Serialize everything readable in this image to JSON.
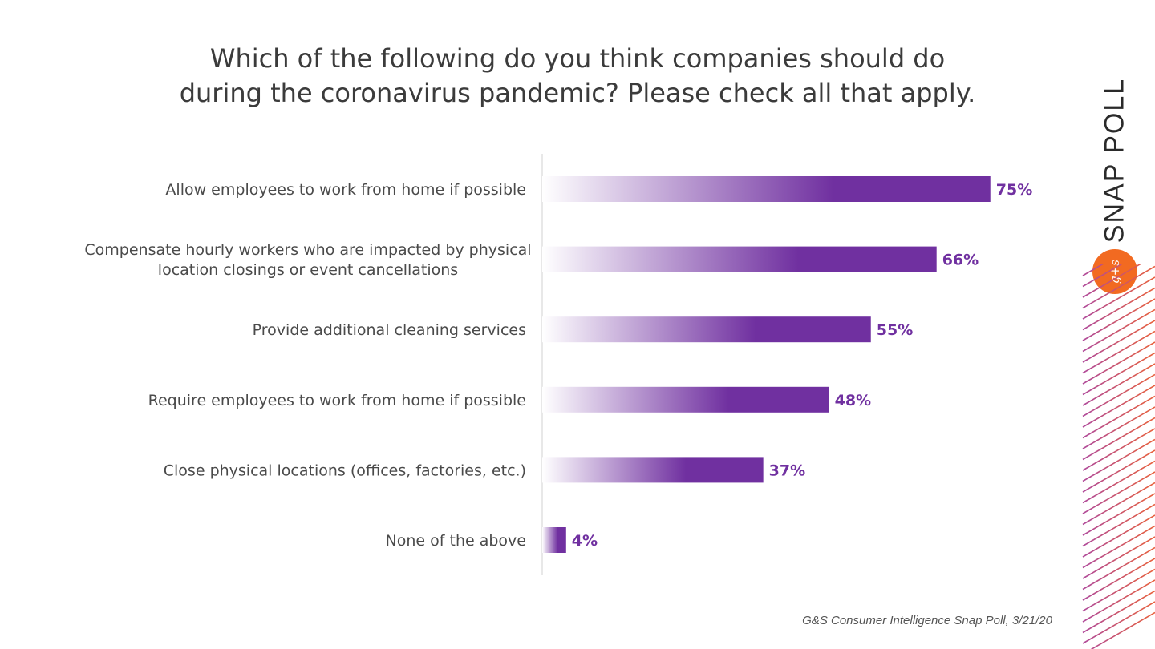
{
  "title": {
    "line1": "Which of the following do you think companies should do",
    "line2": "during the coronavirus pandemic? Please check all that apply."
  },
  "side_title": "SNAP POLL",
  "logo_text": "g+s",
  "source": "G&S Consumer Intelligence Snap Poll, 3/21/20",
  "colors": {
    "bar": "#7030a0",
    "bar_light": "#ffffff",
    "value_label": "#7030a0",
    "logo": "#f26a21",
    "stripe_start": "#e8603c",
    "stripe_end": "#b04a9a"
  },
  "chart_data": {
    "type": "bar",
    "orientation": "horizontal",
    "categories": [
      [
        "Allow employees to work from home if possible"
      ],
      [
        "Compensate hourly workers who are impacted by physical",
        "location closings or event cancellations"
      ],
      [
        "Provide additional cleaning services"
      ],
      [
        "Require employees to work from home if possible"
      ],
      [
        "Close physical locations (offices, factories, etc.)"
      ],
      [
        "None of the above"
      ]
    ],
    "values": [
      75,
      66,
      55,
      48,
      37,
      4
    ],
    "value_labels": [
      "75%",
      "66%",
      "55%",
      "48%",
      "37%",
      "4%"
    ],
    "xlim": [
      0,
      100
    ],
    "grid": false
  }
}
